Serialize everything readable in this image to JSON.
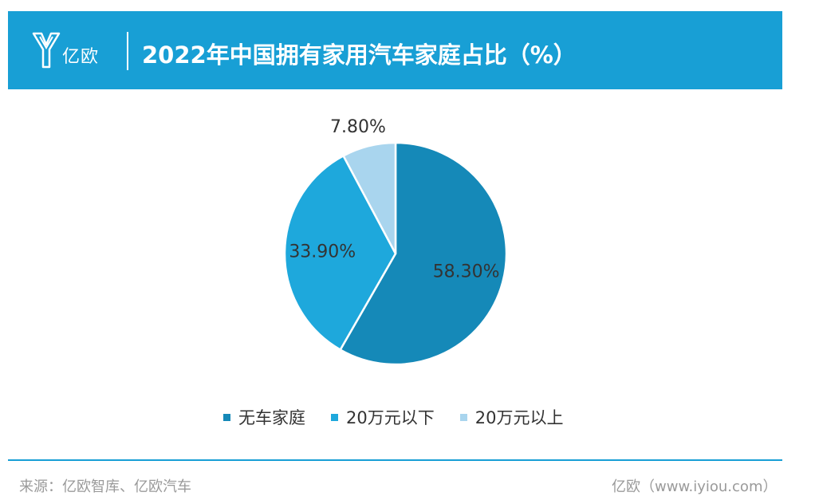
{
  "header": {
    "logo_text": "亿欧",
    "title": "2022年中国拥有家用汽车家庭占比（%）"
  },
  "chart_data": {
    "type": "pie",
    "title": "2022年中国拥有家用汽车家庭占比（%）",
    "categories": [
      "无车家庭",
      "20万元以下",
      "20万元以上"
    ],
    "values": [
      58.3,
      33.9,
      7.8
    ],
    "labels": [
      "58.30%",
      "33.90%",
      "7.80%"
    ],
    "colors": [
      "#1589b8",
      "#1ea8dc",
      "#a9d5ee"
    ],
    "legend": "bottom"
  },
  "footer": {
    "source": "来源：亿欧智库、亿欧汽车",
    "credit": "亿欧（www.iyiou.com）"
  }
}
